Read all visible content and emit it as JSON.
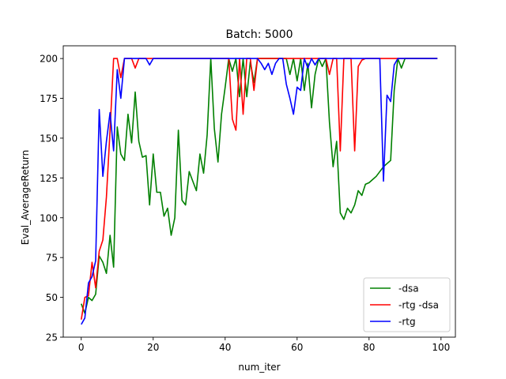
{
  "chart_data": {
    "type": "line",
    "title": "Batch: 5000",
    "xlabel": "num_iter",
    "ylabel": "Eval_AverageReturn",
    "xlim": [
      -5,
      104
    ],
    "ylim": [
      25,
      208
    ],
    "xticks": [
      0,
      20,
      40,
      60,
      80,
      100
    ],
    "yticks": [
      25,
      50,
      75,
      100,
      125,
      150,
      175,
      200
    ],
    "grid": false,
    "legend_position": "lower-right",
    "series": [
      {
        "name": "-dsa",
        "color": "#008000",
        "x": [
          0,
          1,
          2,
          3,
          4,
          5,
          6,
          7,
          8,
          9,
          10,
          11,
          12,
          13,
          14,
          15,
          16,
          17,
          18,
          19,
          20,
          21,
          22,
          23,
          24,
          25,
          26,
          27,
          28,
          29,
          30,
          31,
          32,
          33,
          34,
          35,
          36,
          37,
          38,
          39,
          40,
          41,
          42,
          43,
          44,
          45,
          46,
          47,
          48,
          49,
          50,
          51,
          52,
          53,
          54,
          55,
          56,
          57,
          58,
          59,
          60,
          61,
          62,
          63,
          64,
          65,
          66,
          67,
          68,
          69,
          70,
          71,
          72,
          73,
          74,
          75,
          76,
          77,
          78,
          79,
          80,
          81,
          82,
          83,
          84,
          85,
          86,
          87,
          88,
          89,
          90,
          91,
          92,
          93,
          94,
          95,
          96,
          97,
          98,
          99
        ],
        "y": [
          46,
          40,
          50,
          48,
          52,
          76,
          72,
          65,
          89,
          69,
          157,
          140,
          136,
          165,
          147,
          179,
          148,
          138,
          139,
          108,
          140,
          116,
          116,
          101,
          106,
          89,
          100,
          155,
          111,
          108,
          129,
          123,
          117,
          140,
          128,
          152,
          200,
          156,
          135,
          165,
          182,
          200,
          192,
          200,
          176,
          200,
          176,
          198,
          185,
          200,
          200,
          200,
          200,
          200,
          200,
          200,
          200,
          200,
          190,
          200,
          186,
          200,
          180,
          197,
          169,
          190,
          200,
          195,
          200,
          160,
          132,
          148,
          103,
          99,
          106,
          103,
          108,
          117,
          114,
          121,
          122,
          124,
          126,
          129,
          132,
          134,
          136,
          180,
          200,
          194,
          200,
          200,
          200,
          200,
          200,
          200,
          200,
          200,
          200,
          200
        ]
      },
      {
        "name": "-rtg -dsa",
        "color": "#ff0000",
        "x": [
          0,
          1,
          2,
          3,
          4,
          5,
          6,
          7,
          8,
          9,
          10,
          11,
          12,
          13,
          14,
          15,
          16,
          17,
          18,
          19,
          20,
          21,
          22,
          23,
          24,
          25,
          26,
          27,
          28,
          29,
          30,
          31,
          32,
          33,
          34,
          35,
          36,
          37,
          38,
          39,
          40,
          41,
          42,
          43,
          44,
          45,
          46,
          47,
          48,
          49,
          50,
          51,
          52,
          53,
          54,
          55,
          56,
          57,
          58,
          59,
          60,
          61,
          62,
          63,
          64,
          65,
          66,
          67,
          68,
          69,
          70,
          71,
          72,
          73,
          74,
          75,
          76,
          77,
          78,
          79,
          80,
          81,
          82,
          83,
          84,
          85,
          86,
          87,
          88,
          89,
          90,
          91,
          92,
          93,
          94,
          95,
          96,
          97,
          98,
          99
        ],
        "y": [
          36,
          50,
          51,
          72,
          56,
          79,
          86,
          113,
          155,
          200,
          200,
          188,
          200,
          200,
          200,
          194,
          200,
          200,
          200,
          200,
          200,
          200,
          200,
          200,
          200,
          200,
          200,
          200,
          200,
          200,
          200,
          200,
          200,
          200,
          200,
          200,
          200,
          200,
          200,
          200,
          200,
          200,
          162,
          155,
          200,
          165,
          200,
          200,
          180,
          200,
          200,
          200,
          200,
          200,
          200,
          200,
          200,
          200,
          200,
          200,
          200,
          200,
          200,
          200,
          200,
          200,
          200,
          200,
          200,
          190,
          200,
          200,
          142,
          200,
          200,
          200,
          142,
          195,
          199,
          200,
          200,
          200,
          200,
          200,
          200,
          200,
          200,
          200,
          200,
          200,
          200,
          200,
          200,
          200,
          200,
          200,
          200,
          200,
          200,
          200
        ]
      },
      {
        "name": "-rtg",
        "color": "#0000ff",
        "x": [
          0,
          1,
          2,
          3,
          4,
          5,
          6,
          7,
          8,
          9,
          10,
          11,
          12,
          13,
          14,
          15,
          16,
          17,
          18,
          19,
          20,
          21,
          22,
          23,
          24,
          25,
          26,
          27,
          28,
          29,
          30,
          31,
          32,
          33,
          34,
          35,
          36,
          37,
          38,
          39,
          40,
          41,
          42,
          43,
          44,
          45,
          46,
          47,
          48,
          49,
          50,
          51,
          52,
          53,
          54,
          55,
          56,
          57,
          58,
          59,
          60,
          61,
          62,
          63,
          64,
          65,
          66,
          67,
          68,
          69,
          70,
          71,
          72,
          73,
          74,
          75,
          76,
          77,
          78,
          79,
          80,
          81,
          82,
          83,
          84,
          85,
          86,
          87,
          88,
          89,
          90,
          91,
          92,
          93,
          94,
          95,
          96,
          97,
          98,
          99
        ],
        "y": [
          33,
          37,
          59,
          63,
          73,
          168,
          126,
          148,
          166,
          142,
          193,
          175,
          200,
          200,
          200,
          200,
          200,
          200,
          200,
          196,
          200,
          200,
          200,
          200,
          200,
          200,
          200,
          200,
          200,
          200,
          200,
          200,
          200,
          200,
          200,
          200,
          200,
          200,
          200,
          200,
          200,
          200,
          200,
          200,
          200,
          200,
          200,
          200,
          200,
          200,
          197,
          193,
          197,
          190,
          197,
          200,
          200,
          184,
          175,
          165,
          182,
          180,
          200,
          194,
          200,
          196,
          200,
          200,
          200,
          200,
          200,
          200,
          200,
          200,
          200,
          200,
          200,
          200,
          200,
          200,
          200,
          200,
          200,
          200,
          123,
          177,
          173,
          196,
          200,
          200,
          200,
          200,
          200,
          200,
          200,
          200,
          200,
          200,
          200,
          200
        ]
      }
    ]
  }
}
